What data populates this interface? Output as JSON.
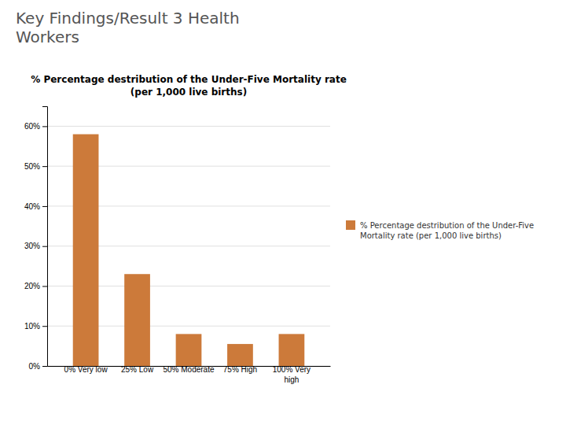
{
  "chart_data": {
    "type": "bar",
    "title": "% Percentage destribution of the Under-Five Mortality rate\n(per 1,000 live births)",
    "annotations": [
      "Key Findings/Result 3 Health\nWorkers"
    ],
    "categories": [
      "0% Very low",
      "25% Low",
      "50% Moderate",
      "75% High",
      "100% Very\nhigh"
    ],
    "series": [
      {
        "name": "% Percentage destribution of the Under-Five\nMortality rate (per 1,000 live births)",
        "color": "#CC7A3A",
        "values": [
          0.58,
          0.23,
          0.08,
          0.055,
          0.08
        ]
      }
    ],
    "ylim": [
      0,
      0.65
    ],
    "yticks": [
      {
        "value": 0.0,
        "label": "0%"
      },
      {
        "value": 0.1,
        "label": "10%"
      },
      {
        "value": 0.2,
        "label": "20%"
      },
      {
        "value": 0.3,
        "label": "30%"
      },
      {
        "value": 0.4,
        "label": "40%"
      },
      {
        "value": 0.5,
        "label": "50%"
      },
      {
        "value": 0.6,
        "label": "60%"
      }
    ],
    "grid": true,
    "legend": "right"
  }
}
